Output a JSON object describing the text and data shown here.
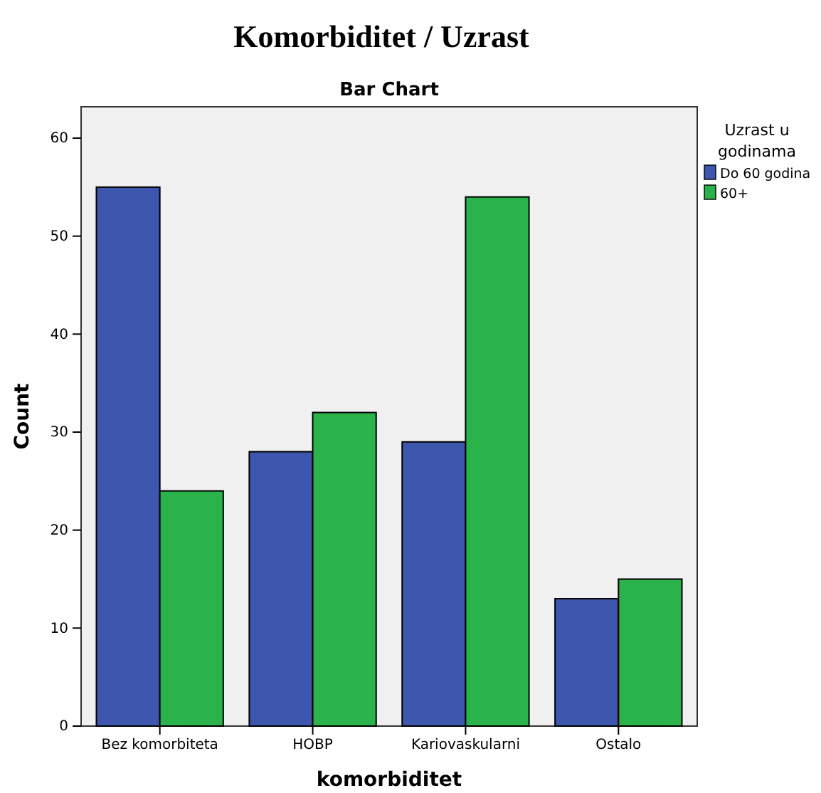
{
  "chart_data": {
    "type": "bar",
    "title": "Komorbiditet / Uzrast",
    "subtitle": "Bar Chart",
    "xlabel": "komorbiditet",
    "ylabel": "Count",
    "legend_title": "Uzrast u godinama",
    "categories": [
      "Bez komorbiteta",
      "HOBP",
      "Kariovaskularni",
      "Ostalo"
    ],
    "series": [
      {
        "name": "Do 60 godina",
        "color": "#3d56ae",
        "values": [
          55,
          28,
          29,
          13
        ]
      },
      {
        "name": "60+",
        "color": "#2ab34a",
        "values": [
          24,
          32,
          54,
          15
        ]
      }
    ],
    "ylim": [
      0,
      63.2
    ],
    "yticks": [
      0,
      10,
      20,
      30,
      40,
      50,
      60
    ],
    "grid": false,
    "legend": "right"
  }
}
